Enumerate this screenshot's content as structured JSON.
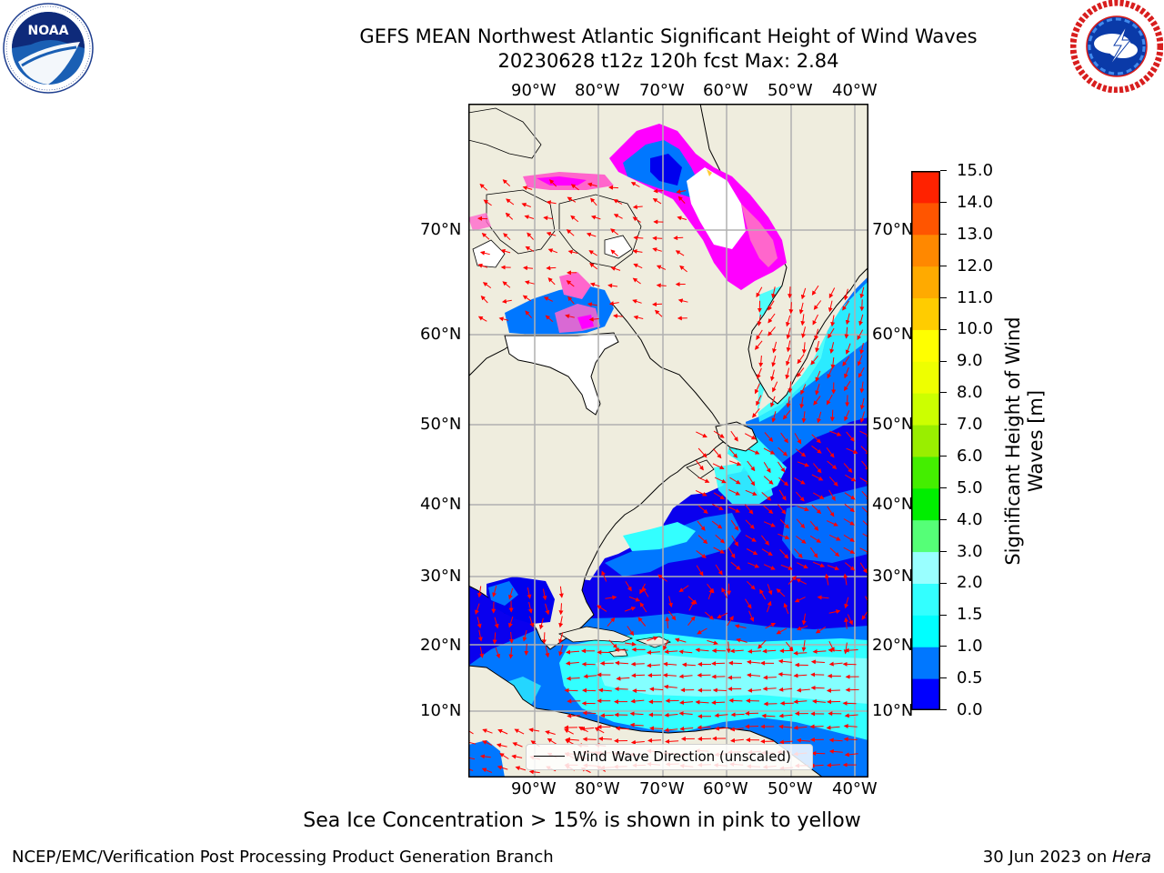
{
  "header": {
    "title_line1": "GEFS MEAN Northwest Atlantic Significant Height of Wind Waves",
    "title_line2": "20230628 t12z 120h fcst   Max: 2.84"
  },
  "logos": {
    "left_logo_text": "NOAA",
    "left_logo_ring": "NATIONAL OCEANIC AND ATMOSPHERIC ADMINISTRATION · U.S. DEPARTMENT OF COMMERCE",
    "right_logo_ring": "NATIONAL WEATHER SERVICE"
  },
  "map": {
    "lon_labels": [
      "90°W",
      "80°W",
      "70°W",
      "60°W",
      "50°W",
      "40°W"
    ],
    "lat_labels": [
      "70°N",
      "60°N",
      "50°N",
      "40°N",
      "30°N",
      "20°N",
      "10°N"
    ],
    "legend_label": "Wind Wave Direction (unscaled)",
    "colors": {
      "land": "#efedde",
      "sea_ice_white": "#ffffff",
      "ice_pink": "#ff66cc",
      "ice_magenta": "#ff00ff",
      "ice_yellow": "#ffcc33",
      "arrows": "#ff0000",
      "grid": "#b0b0b0",
      "coast": "#000000"
    }
  },
  "colorbar": {
    "title": "Significant Height of Wind Waves [m]",
    "ticks": [
      "15.0",
      "14.0",
      "13.0",
      "12.0",
      "11.0",
      "10.0",
      "9.0",
      "8.0",
      "7.0",
      "6.0",
      "5.0",
      "4.0",
      "3.0",
      "2.0",
      "1.5",
      "1.0",
      "0.5",
      "0.0"
    ],
    "colors_bottom_to_top": [
      "#0000ff",
      "#0077ff",
      "#00ffff",
      "#33ffff",
      "#99ffff",
      "#55ff77",
      "#00ee00",
      "#44ee00",
      "#99ee00",
      "#ccff00",
      "#eeff00",
      "#ffff00",
      "#ffcc00",
      "#ffaa00",
      "#ff8800",
      "#ff5500",
      "#ff2200"
    ]
  },
  "footer": {
    "caption": "Sea Ice Concentration > 15% is shown in pink to yellow",
    "left": "NCEP/EMC/Verification Post Processing Product Generation Branch",
    "right_prefix": "30 Jun 2023 on ",
    "right_host": "Hera"
  }
}
